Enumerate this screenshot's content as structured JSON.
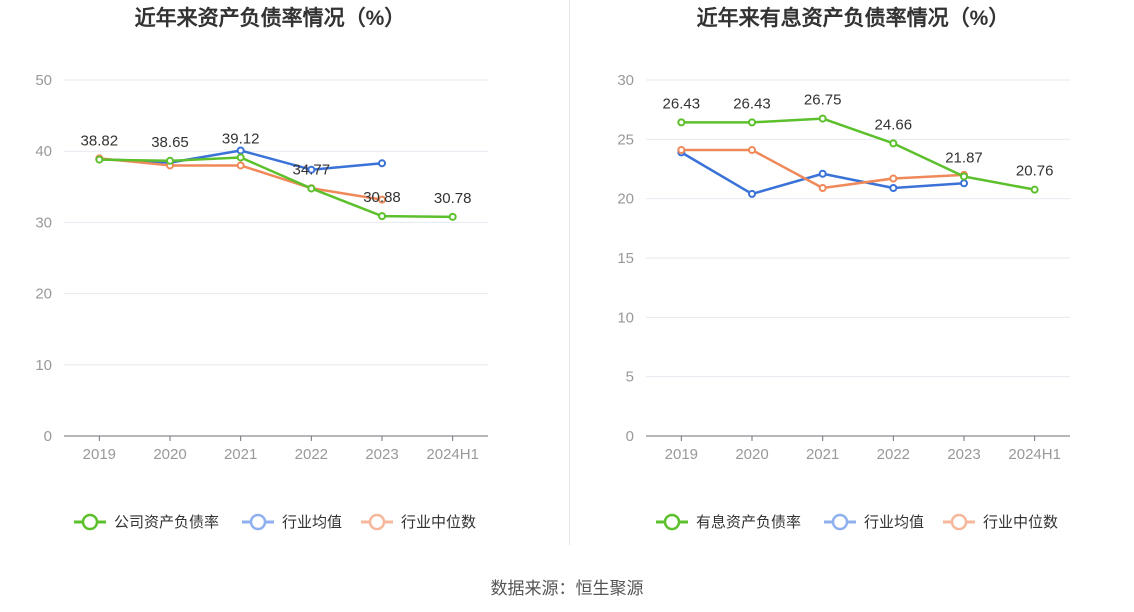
{
  "source": "数据来源：恒生聚源",
  "colors": {
    "company": "#5cc02c",
    "avg": "#3a72d8",
    "median": "#f0895a",
    "legend_avg": "#8fb0ee",
    "legend_median": "#f6b79b"
  },
  "chart_data": [
    {
      "type": "line",
      "title": "近年来资产负债率情况（%）",
      "categories": [
        "2019",
        "2020",
        "2021",
        "2022",
        "2023",
        "2024H1"
      ],
      "ylim": [
        0,
        50
      ],
      "yticks": [
        0,
        10,
        20,
        30,
        40,
        50
      ],
      "grid": true,
      "legend_position": "bottom",
      "series": [
        {
          "name": "公司资产负债率",
          "color": "#5cc02c",
          "values": [
            38.82,
            38.65,
            39.12,
            34.77,
            30.88,
            30.78
          ],
          "labels": [
            "38.82",
            "38.65",
            "39.12",
            "34.77",
            "30.88",
            "30.78"
          ]
        },
        {
          "name": "行业均值",
          "color": "#3a72d8",
          "values": [
            38.9,
            38.4,
            40.1,
            37.4,
            38.3,
            null
          ]
        },
        {
          "name": "行业中位数",
          "color": "#f0895a",
          "values": [
            39.0,
            38.0,
            38.0,
            34.8,
            33.2,
            null
          ]
        }
      ]
    },
    {
      "type": "line",
      "title": "近年来有息资产负债率情况（%）",
      "categories": [
        "2019",
        "2020",
        "2021",
        "2022",
        "2023",
        "2024H1"
      ],
      "ylim": [
        0,
        30
      ],
      "yticks": [
        0,
        5,
        10,
        15,
        20,
        25,
        30
      ],
      "grid": true,
      "legend_position": "bottom",
      "series": [
        {
          "name": "有息资产负债率",
          "color": "#5cc02c",
          "values": [
            26.43,
            26.43,
            26.75,
            24.66,
            21.87,
            20.76
          ],
          "labels": [
            "26.43",
            "26.43",
            "26.75",
            "24.66",
            "21.87",
            "20.76"
          ]
        },
        {
          "name": "行业均值",
          "color": "#3a72d8",
          "values": [
            23.9,
            20.4,
            22.1,
            20.9,
            21.3,
            null
          ]
        },
        {
          "name": "行业中位数",
          "color": "#f0895a",
          "values": [
            24.1,
            24.1,
            20.9,
            21.7,
            22.0,
            null
          ]
        }
      ]
    }
  ]
}
